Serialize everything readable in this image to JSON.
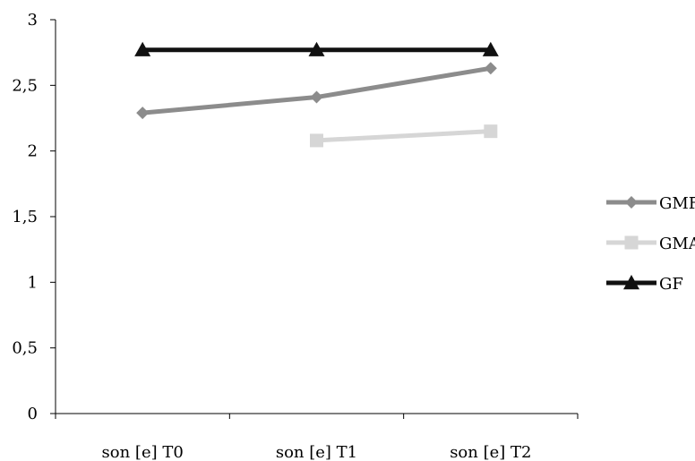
{
  "chart_data": {
    "type": "line",
    "categories": [
      "son [e] T0",
      "son [e] T1",
      "son [e] T2"
    ],
    "ylim": [
      0,
      3
    ],
    "yticks": [
      "0",
      "0,5",
      "1",
      "1,5",
      "2",
      "2,5",
      "3"
    ],
    "ytick_values": [
      0,
      0.5,
      1,
      1.5,
      2,
      2.5,
      3
    ],
    "grid": false,
    "legend_position": "right",
    "series": [
      {
        "name": "GMF",
        "values": [
          2.29,
          2.41,
          2.63
        ],
        "color": "#8c8c8c",
        "marker": "diamond"
      },
      {
        "name": "GMA",
        "values": [
          null,
          2.08,
          2.15
        ],
        "color": "#d6d6d6",
        "marker": "square"
      },
      {
        "name": "GF",
        "values": [
          2.77,
          2.77,
          2.77
        ],
        "color": "#111111",
        "marker": "triangle"
      }
    ]
  }
}
